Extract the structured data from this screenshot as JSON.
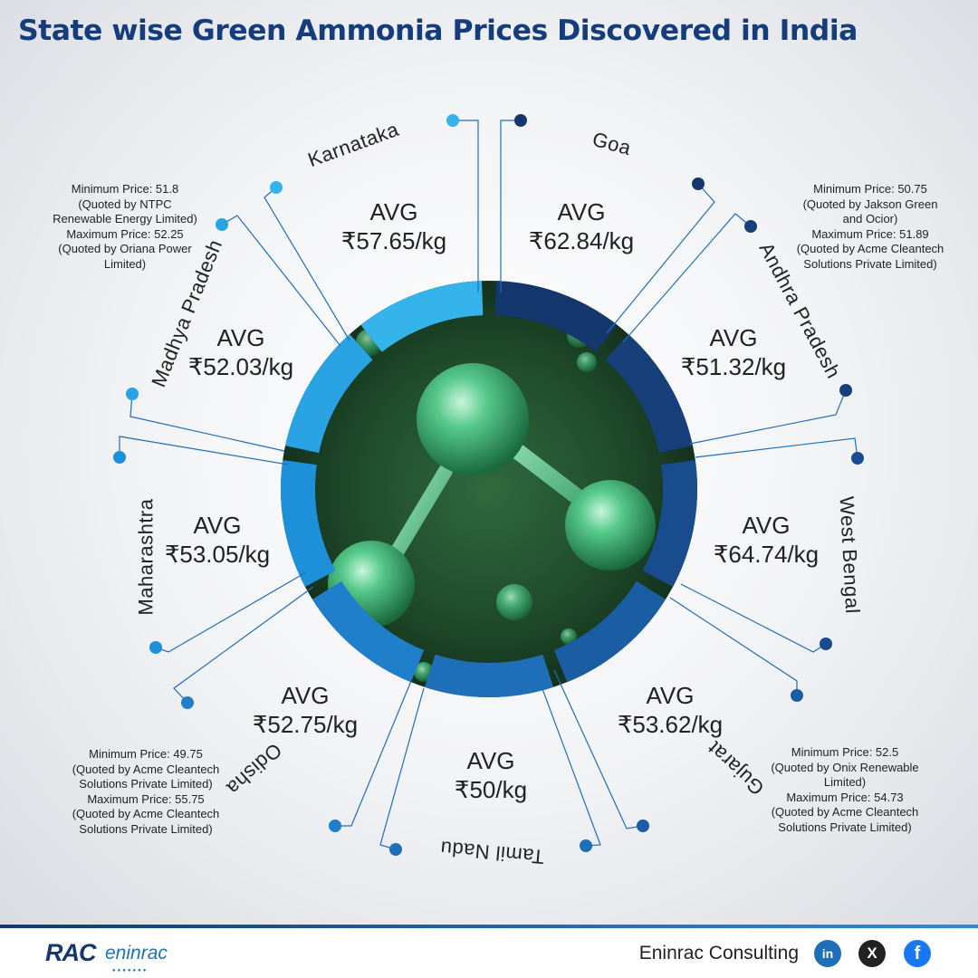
{
  "title": "State wise Green Ammonia Prices Discovered in India",
  "segments": [
    {
      "state": "Goa",
      "avg_label": "AVG",
      "avg_value": "₹62.84/kg",
      "color": "#14376e"
    },
    {
      "state": "Andhra Pradesh",
      "avg_label": "AVG",
      "avg_value": "₹51.32/kg",
      "color": "#173f7a"
    },
    {
      "state": "West Bengal",
      "avg_label": "AVG",
      "avg_value": "₹64.74/kg",
      "color": "#194c8e"
    },
    {
      "state": "Gujarat",
      "avg_label": "AVG",
      "avg_value": "₹53.62/kg",
      "color": "#1b5da3"
    },
    {
      "state": "Tamil Nadu",
      "avg_label": "AVG",
      "avg_value": "₹50/kg",
      "color": "#1f6fb8"
    },
    {
      "state": "Odisha",
      "avg_label": "AVG",
      "avg_value": "₹52.75/kg",
      "color": "#1f7fca"
    },
    {
      "state": "Maharashtra",
      "avg_label": "AVG",
      "avg_value": "₹53.05/kg",
      "color": "#1e8fd9"
    },
    {
      "state": "Madhya Pradesh",
      "avg_label": "AVG",
      "avg_value": "₹52.03/kg",
      "color": "#29a3e3"
    },
    {
      "state": "Karnataka",
      "avg_label": "AVG",
      "avg_value": "₹57.65/kg",
      "color": "#35b4ec"
    }
  ],
  "notes": {
    "madhya_pradesh": [
      "Minimum Price: 51.8",
      "(Quoted by NTPC",
      "Renewable Energy Limited)",
      "Maximum Price: 52.25",
      "(Quoted by Oriana Power",
      "Limited)"
    ],
    "andhra_pradesh": [
      "Minimum Price: 50.75",
      "(Quoted by Jakson Green",
      "and Ocior)",
      "Maximum Price: 51.89",
      "(Quoted by Acme Cleantech",
      "Solutions Private Limited)"
    ],
    "odisha": [
      "Minimum Price: 49.75",
      "(Quoted by Acme Cleantech",
      "Solutions Private Limited)",
      "Maximum Price: 55.75",
      "(Quoted by Acme Cleantech",
      "Solutions Private Limited)"
    ],
    "gujarat": [
      "Minimum Price: 52.5",
      "(Quoted by Onix Renewable",
      "Limited)",
      "Maximum Price: 54.73",
      "(Quoted by Acme Cleantech",
      "Solutions Private Limited)"
    ]
  },
  "footer": {
    "logo_rac": "RAC",
    "logo_eninrac": "eninrac",
    "company": "Eninrac Consulting",
    "linkedin_icon": "linkedin-icon",
    "x_icon": "x-icon",
    "facebook_icon": "facebook-icon",
    "linkedin_glyph": "in",
    "x_glyph": "X",
    "facebook_glyph": "f"
  },
  "colors": {
    "title": "#153d7c",
    "connector": "#1f6fb8",
    "molecule_bg": "#1f4a2a",
    "molecule_sphere": "#3fbf7a"
  }
}
